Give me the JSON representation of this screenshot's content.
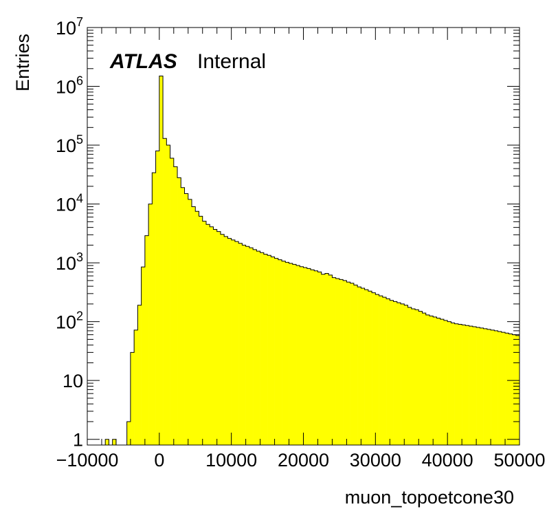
{
  "chart_data": {
    "type": "histogram",
    "xlabel": "muon_topoetcone30",
    "ylabel": "Entries",
    "label_bold": "ATLAS",
    "label_normal": "Internal",
    "xlim": [
      -10000,
      50000
    ],
    "ylim": [
      0.8,
      10000000
    ],
    "yscale": "log",
    "bin_width": 500,
    "bin_start": -10000,
    "fill_color": "#ffff00",
    "line_color": "#000000",
    "x_tick_labels": [
      "−10000",
      "0",
      "10000",
      "20000",
      "30000",
      "40000",
      "50000"
    ],
    "x_tick_values": [
      -10000,
      0,
      10000,
      20000,
      30000,
      40000,
      50000
    ],
    "y_tick_values": [
      1,
      10,
      100,
      1000,
      10000,
      100000,
      1000000,
      10000000
    ],
    "y_tick_labels": [
      {
        "base": "1",
        "exp": ""
      },
      {
        "base": "10",
        "exp": ""
      },
      {
        "base": "10",
        "exp": "2"
      },
      {
        "base": "10",
        "exp": "3"
      },
      {
        "base": "10",
        "exp": "4"
      },
      {
        "base": "10",
        "exp": "5"
      },
      {
        "base": "10",
        "exp": "6"
      },
      {
        "base": "10",
        "exp": "7"
      }
    ],
    "values": [
      0,
      0,
      0,
      0,
      0,
      1,
      0,
      1,
      0,
      0,
      0,
      2,
      30,
      72,
      190,
      850,
      2900,
      10000,
      34000,
      80000,
      1500000,
      130000,
      100000,
      60000,
      43000,
      28000,
      19000,
      15000,
      12000,
      9000,
      7500,
      6200,
      5100,
      4500,
      4100,
      3700,
      3400,
      3050,
      2800,
      2600,
      2450,
      2300,
      2150,
      2000,
      1900,
      1800,
      1680,
      1580,
      1490,
      1400,
      1340,
      1260,
      1190,
      1130,
      1070,
      1020,
      980,
      940,
      900,
      860,
      830,
      800,
      760,
      730,
      700,
      640,
      660,
      620,
      560,
      540,
      520,
      500,
      470,
      450,
      420,
      390,
      370,
      350,
      330,
      310,
      290,
      275,
      260,
      245,
      230,
      220,
      210,
      200,
      190,
      175,
      165,
      160,
      150,
      140,
      130,
      125,
      120,
      115,
      110,
      105,
      100,
      95,
      92,
      90,
      88,
      86,
      84,
      82,
      80,
      78,
      76,
      74,
      72,
      70,
      68,
      66,
      64,
      62,
      60,
      58
    ]
  }
}
